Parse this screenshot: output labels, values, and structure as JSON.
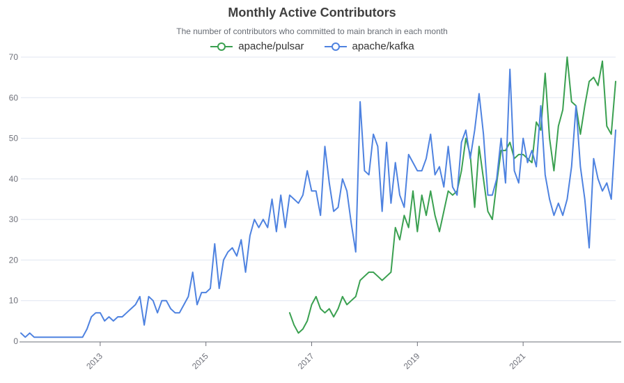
{
  "header": {
    "title": "Monthly Active Contributors",
    "subtitle": "The number of contributors who committed to main branch in each month"
  },
  "legend": {
    "items": [
      {
        "label": "apache/pulsar",
        "color": "#3AA050"
      },
      {
        "label": "apache/kafka",
        "color": "#4E82E0"
      }
    ]
  },
  "chart_data": {
    "type": "line",
    "title": "Monthly Active Contributors",
    "subtitle": "The number of contributors who committed to main branch in each month",
    "x_unit": "month",
    "x_start": "2011-07",
    "x_end": "2022-10",
    "month_count": 136,
    "ylim": [
      0,
      70
    ],
    "y_ticks": [
      0,
      10,
      20,
      30,
      40,
      50,
      60,
      70
    ],
    "x_tick_labels": [
      {
        "label": "2013",
        "month_index": 18
      },
      {
        "label": "2015",
        "month_index": 42
      },
      {
        "label": "2017",
        "month_index": 66
      },
      {
        "label": "2019",
        "month_index": 90
      },
      {
        "label": "2021",
        "month_index": 114
      }
    ],
    "grid": true,
    "grid_color": "#E0E6F1",
    "axis_color": "#6E7079",
    "legend_position": "top",
    "series": [
      {
        "name": "apache/pulsar",
        "color": "#3AA050",
        "start_month_index": 61,
        "start_label": "2016-08",
        "values": [
          7,
          4,
          2,
          3,
          5,
          9,
          11,
          8,
          7,
          8,
          6,
          8,
          11,
          9,
          10,
          11,
          15,
          16,
          17,
          17,
          16,
          15,
          16,
          17,
          28,
          25,
          31,
          28,
          37,
          27,
          36,
          31,
          37,
          31,
          27,
          32,
          37,
          36,
          37,
          42,
          50,
          46,
          33,
          48,
          40,
          32,
          30,
          39,
          47,
          47,
          49,
          45,
          46,
          46,
          45,
          44,
          54,
          52,
          66,
          50,
          42,
          53,
          57,
          70,
          59,
          58,
          51,
          58,
          64,
          65,
          63,
          69,
          53,
          51,
          64
        ]
      },
      {
        "name": "apache/kafka",
        "color": "#4E82E0",
        "start_month_index": 0,
        "start_label": "2011-07",
        "values": [
          2,
          1,
          2,
          1,
          1,
          1,
          1,
          1,
          1,
          1,
          1,
          1,
          1,
          1,
          1,
          3,
          6,
          7,
          7,
          5,
          6,
          5,
          6,
          6,
          7,
          8,
          9,
          11,
          4,
          11,
          10,
          7,
          10,
          10,
          8,
          7,
          7,
          9,
          11,
          17,
          9,
          12,
          12,
          13,
          24,
          13,
          20,
          22,
          23,
          21,
          25,
          17,
          26,
          30,
          28,
          30,
          28,
          35,
          27,
          36,
          28,
          36,
          35,
          34,
          36,
          42,
          37,
          37,
          31,
          48,
          39,
          32,
          33,
          40,
          37,
          29,
          22,
          59,
          42,
          41,
          51,
          48,
          32,
          49,
          34,
          44,
          36,
          33,
          46,
          44,
          42,
          42,
          45,
          51,
          41,
          43,
          38,
          48,
          38,
          36,
          49,
          52,
          45,
          52,
          61,
          51,
          36,
          36,
          40,
          50,
          39,
          67,
          42,
          39,
          50,
          44,
          47,
          43,
          58,
          41,
          35,
          31,
          34,
          31,
          35,
          43,
          58,
          43,
          35,
          23,
          45,
          40,
          37,
          39,
          35,
          52
        ]
      }
    ]
  }
}
